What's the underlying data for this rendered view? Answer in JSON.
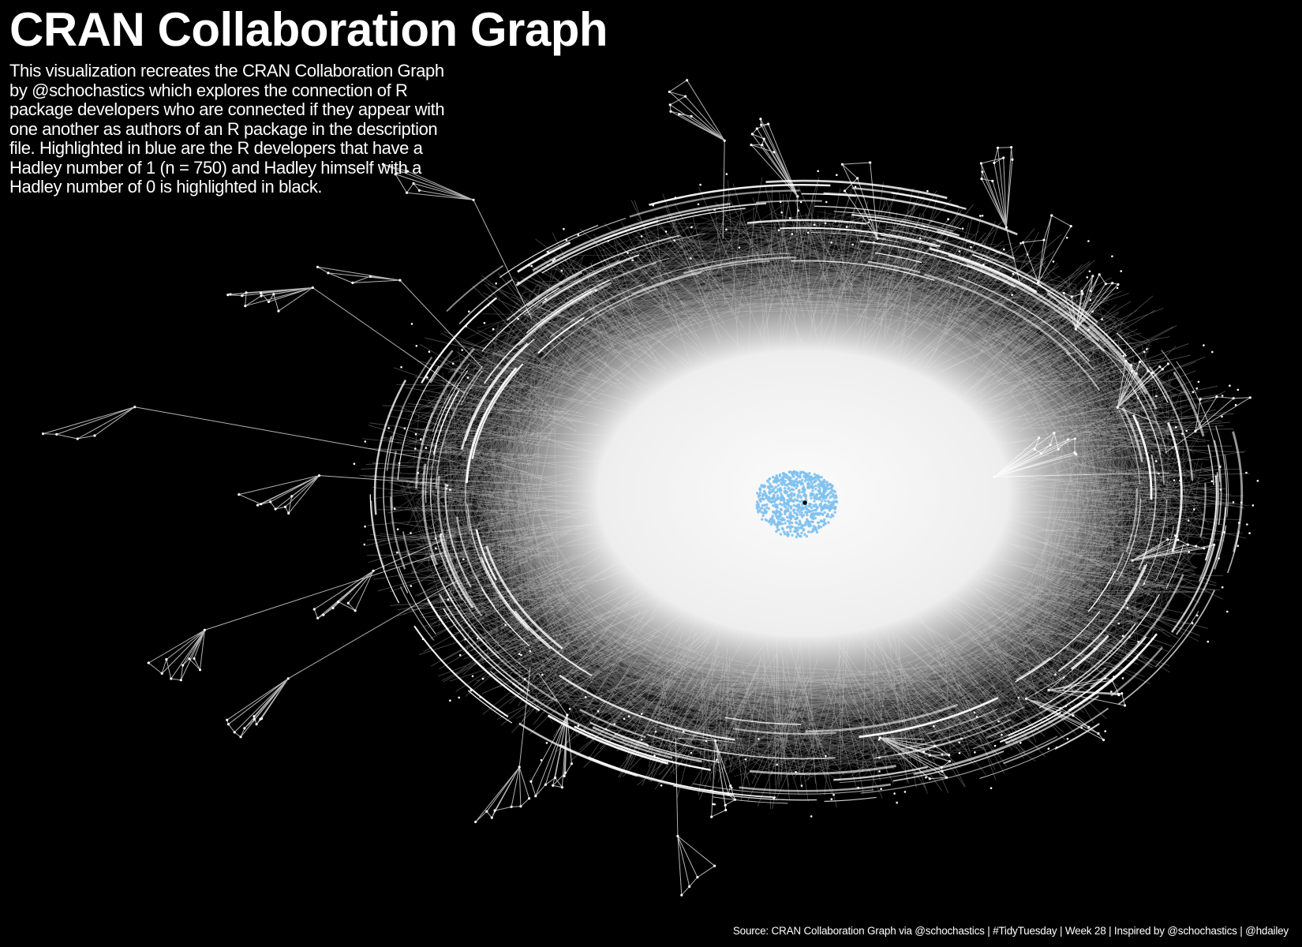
{
  "title": "CRAN Collaboration Graph",
  "subtitle": "This visualization recreates the CRAN Collaboration Graph by @schochastics which explores the connection of R package developers who are connected if they appear with one another as authors of an R package in the description file. Highlighted in blue are the R developers that have a Hadley number of 1 (n = 750) and Hadley himself with a Hadley number of 0 is highlighted in black.",
  "caption": "Source: CRAN Collaboration Graph via @schochastics | #TidyTuesday | Week 28 | Inspired by @schochastics | @hdailey",
  "colors": {
    "background": "#000000",
    "edge": "#ffffff",
    "node": "#ffffff",
    "hadley_1_node": "#7ec1ee",
    "hadley_0_node": "#000000"
  },
  "graph": {
    "hadley_1_count": 750
  }
}
